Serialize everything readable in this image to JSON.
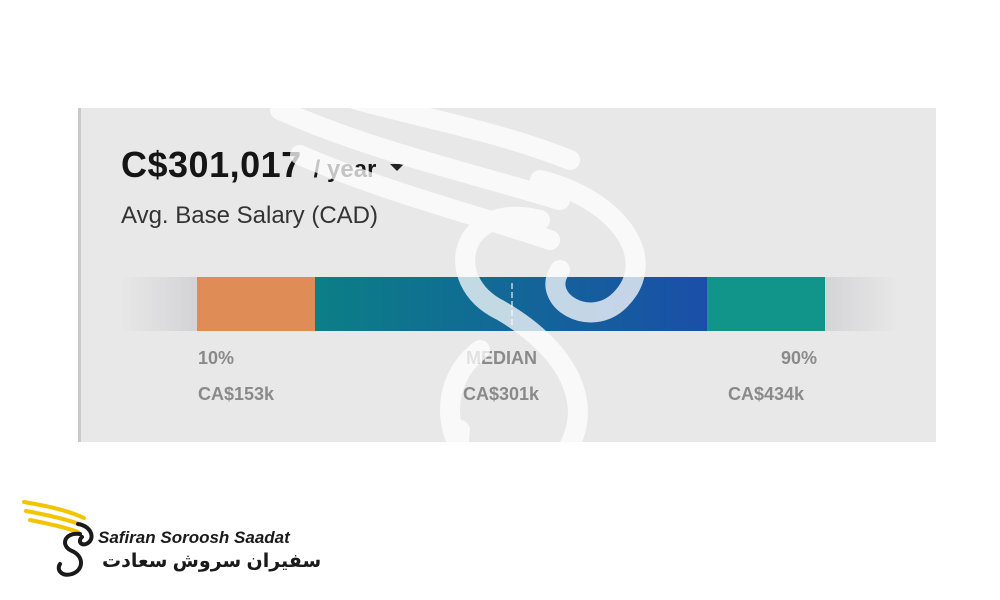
{
  "salary": {
    "amount": "C$301,017",
    "period": "/ year",
    "subtitle": "Avg. Base Salary (CAD)"
  },
  "distribution": {
    "segments": [
      {
        "name": "low-range",
        "color": "#e08c57"
      },
      {
        "name": "mid-range",
        "color": "#0b7f86"
      },
      {
        "name": "upper-range",
        "color": "#1a4fa8"
      },
      {
        "name": "high-range",
        "color": "#119489"
      }
    ],
    "low": {
      "label": "10%",
      "value": "CA$153k"
    },
    "median": {
      "label": "MEDIAN",
      "value": "CA$301k"
    },
    "high": {
      "label": "90%",
      "value": "CA$434k"
    }
  },
  "logo": {
    "text_en": "Safiran Soroosh Saadat",
    "text_fa": "سفیران سروش سعادت",
    "accent": "#f2c500"
  }
}
